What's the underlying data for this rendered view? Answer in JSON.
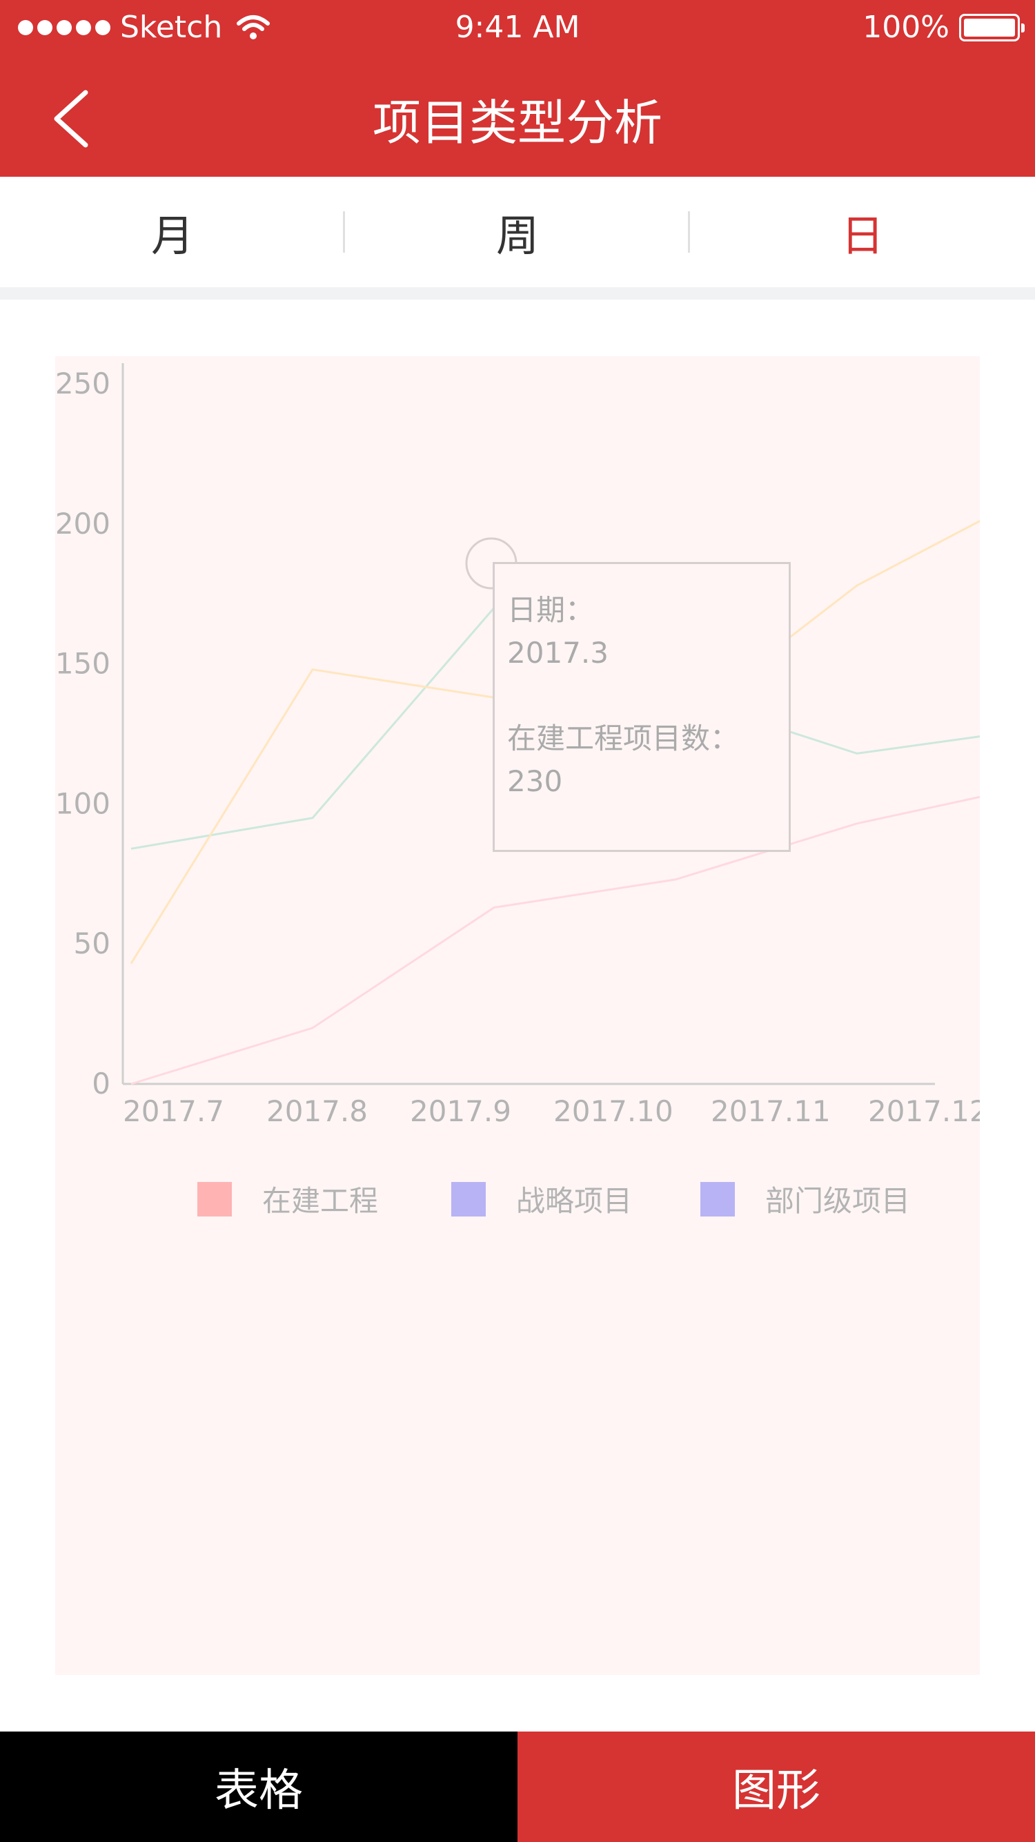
{
  "status_bar": {
    "carrier": "Sketch",
    "time": "9:41 AM",
    "battery": "100%"
  },
  "nav": {
    "title": "项目类型分析",
    "back_icon": "chevron-left-icon"
  },
  "tabs": [
    {
      "label": "月",
      "active": false
    },
    {
      "label": "周",
      "active": false
    },
    {
      "label": "日",
      "active": true
    }
  ],
  "chart_data": {
    "type": "line",
    "categories": [
      "2017.7",
      "2017.8",
      "2017.9",
      "2017.10",
      "2017.11",
      "2017.12"
    ],
    "ylim": [
      0,
      250
    ],
    "yticks": [
      "250",
      "200",
      "150",
      "100",
      "50",
      "0"
    ],
    "series": [
      {
        "name": "在建工程",
        "color": "#ffb3b3",
        "values": [
          0,
          20,
          63,
          73,
          93,
          107
        ]
      },
      {
        "name": "战略项目",
        "color": "#b8b3f5",
        "values": [
          84,
          95,
          170,
          139,
          118,
          127
        ]
      },
      {
        "name": "部门级项目",
        "color": "#b8b3f5",
        "values": [
          43,
          148,
          138,
          128,
          178,
          212
        ]
      }
    ],
    "line_colors": [
      "#ffd9e0",
      "#cce8dc",
      "#ffe6bf"
    ],
    "legend": [
      "在建工程",
      "战略项目",
      "部门级项目"
    ],
    "tooltip": {
      "date_label": "日期：",
      "date": "2017.3",
      "metric_label": "在建工程项目数：",
      "metric_value": "230"
    }
  },
  "bottom_tabs": {
    "table": "表格",
    "graph": "图形"
  },
  "colors": {
    "brand": "#d63333",
    "tab_active": "#d63333"
  }
}
